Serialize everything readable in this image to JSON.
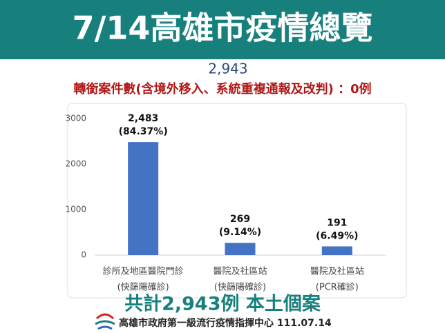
{
  "chart_data": {
    "type": "bar",
    "title": "7/14高雄市疫情總覽",
    "subtitle": "2,943",
    "note": "轉銜案件數(含境外移入、系統重複通報及改判) ：0例",
    "categories": [
      "診所及地區醫院門診",
      "醫院及社區站",
      "醫院及社區站"
    ],
    "subcategories": [
      "(快篩陽確診)",
      "(快篩陽確診)",
      "(PCR確診)"
    ],
    "values": [
      2483,
      269,
      191
    ],
    "value_labels": [
      "2,483",
      "269",
      "191"
    ],
    "percent_labels": [
      "(84.37%)",
      "(9.14%)",
      "(6.49%)"
    ],
    "color": "#4472c4",
    "ylim": [
      0,
      3000
    ],
    "yticks": [
      0,
      1000,
      2000,
      3000
    ],
    "grid": false,
    "total": "共計2,943例 本土個案",
    "footer": "高雄市政府第一級流行疫情指揮中心 111.07.14"
  }
}
